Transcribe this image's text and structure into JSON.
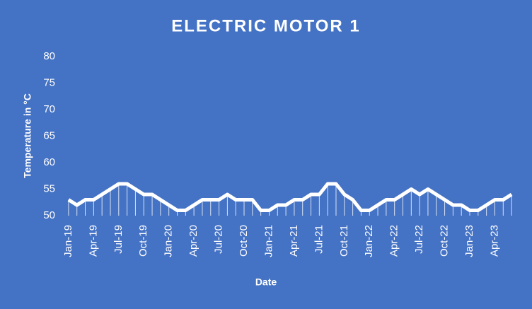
{
  "chart_data": {
    "type": "line",
    "title": "ELECTRIC MOTOR 1",
    "x_label": "Date",
    "y_label": "Temperature in °C",
    "categories": [
      "Jan-19",
      null,
      null,
      "Apr-19",
      null,
      null,
      "Jul-19",
      null,
      null,
      "Oct-19",
      null,
      null,
      "Jan-20",
      null,
      null,
      "Apr-20",
      null,
      null,
      "Jul-20",
      null,
      null,
      "Oct-20",
      null,
      null,
      "Jan-21",
      null,
      null,
      "Apr-21",
      null,
      null,
      "Jul-21",
      null,
      null,
      "Oct-21",
      null,
      null,
      "Jan-22",
      null,
      null,
      "Apr-22",
      null,
      null,
      "Jul-22",
      null,
      null,
      "Oct-22",
      null,
      null,
      "Jan-23",
      null,
      null,
      "Apr-23",
      null,
      null
    ],
    "values": [
      53,
      52,
      53,
      53,
      54,
      55,
      56,
      56,
      55,
      54,
      54,
      53,
      52,
      51,
      51,
      52,
      53,
      53,
      53,
      54,
      53,
      53,
      53,
      51,
      51,
      52,
      52,
      53,
      53,
      54,
      54,
      56,
      56,
      54,
      53,
      51,
      51,
      52,
      53,
      53,
      54,
      55,
      54,
      55,
      54,
      53,
      52,
      52,
      51,
      51,
      52,
      53,
      53,
      54
    ],
    "color": "#ffffff",
    "drop_lines": true,
    "ylim": [
      50,
      80
    ],
    "yticks": [
      50,
      55,
      60,
      65,
      70,
      75,
      80
    ],
    "grid": false
  }
}
